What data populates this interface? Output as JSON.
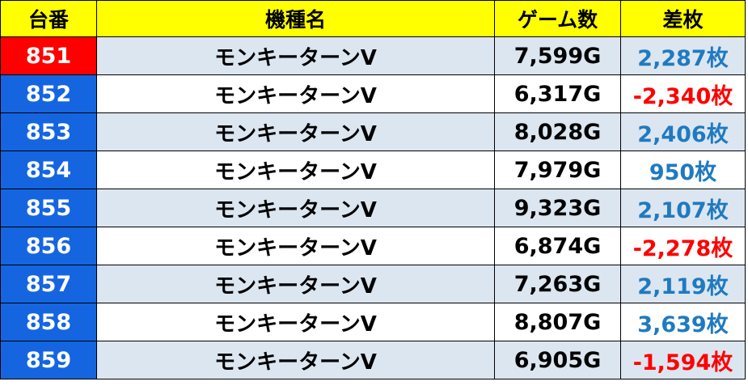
{
  "headers": {
    "number": "台番",
    "machine": "機種名",
    "games": "ゲーム数",
    "diff": "差枚"
  },
  "colors": {
    "header_bg": "#ffff00",
    "highlight_number_bg": "#ff0000",
    "number_bg": "#1565e0",
    "shaded_row_bg": "#dce6f1",
    "positive_text": "#1f7ac0",
    "negative_text": "#ff0000"
  },
  "rows": [
    {
      "number": "851",
      "machine": "モンキーターンV",
      "games": "7,599G",
      "diff": "2,287枚"
    },
    {
      "number": "852",
      "machine": "モンキーターンV",
      "games": "6,317G",
      "diff": "-2,340枚"
    },
    {
      "number": "853",
      "machine": "モンキーターンV",
      "games": "8,028G",
      "diff": "2,406枚"
    },
    {
      "number": "854",
      "machine": "モンキーターンV",
      "games": "7,979G",
      "diff": "950枚"
    },
    {
      "number": "855",
      "machine": "モンキーターンV",
      "games": "9,323G",
      "diff": "2,107枚"
    },
    {
      "number": "856",
      "machine": "モンキーターンV",
      "games": "6,874G",
      "diff": "-2,278枚"
    },
    {
      "number": "857",
      "machine": "モンキーターンV",
      "games": "7,263G",
      "diff": "2,119枚"
    },
    {
      "number": "858",
      "machine": "モンキーターンV",
      "games": "8,807G",
      "diff": "3,639枚"
    },
    {
      "number": "859",
      "machine": "モンキーターンV",
      "games": "6,905G",
      "diff": "-1,594枚"
    }
  ]
}
